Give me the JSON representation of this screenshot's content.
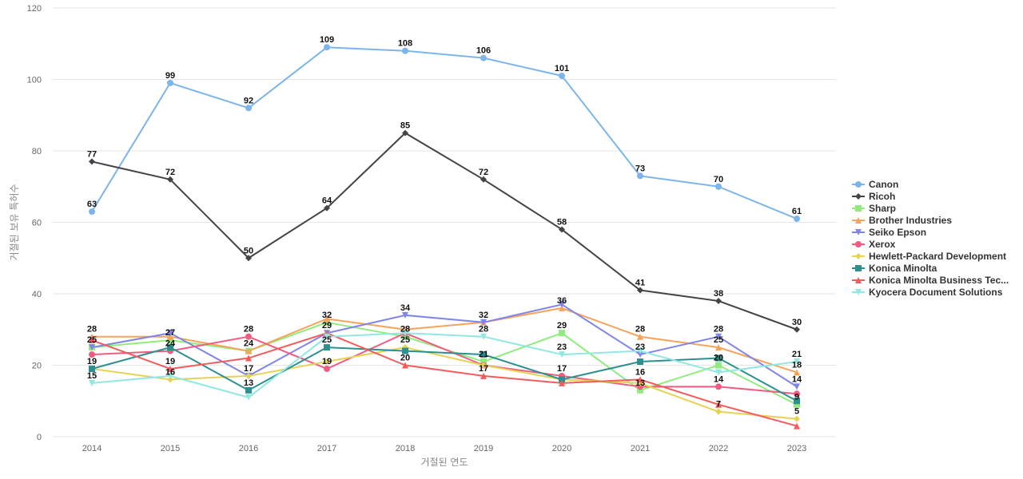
{
  "chart_data": {
    "type": "line",
    "xlabel": "거절된 연도",
    "ylabel": "거절된 보유 특허수",
    "ylim": [
      0,
      120
    ],
    "yticks": [
      0,
      20,
      40,
      60,
      80,
      100,
      120
    ],
    "grid": true,
    "legend_position": "right",
    "categories": [
      "2014",
      "2015",
      "2016",
      "2017",
      "2018",
      "2019",
      "2020",
      "2021",
      "2022",
      "2023"
    ],
    "series": [
      {
        "name": "Canon",
        "color": "#7cb5ec",
        "marker": "circle",
        "values": [
          63,
          99,
          92,
          109,
          108,
          106,
          101,
          73,
          70,
          61
        ]
      },
      {
        "name": "Ricoh",
        "color": "#434348",
        "marker": "diamond",
        "values": [
          77,
          72,
          50,
          64,
          85,
          72,
          58,
          41,
          38,
          30
        ]
      },
      {
        "name": "Sharp",
        "color": "#90ed7d",
        "marker": "square",
        "values": [
          25,
          27,
          24,
          32,
          28,
          21,
          29,
          13,
          20,
          9
        ]
      },
      {
        "name": "Brother Industries",
        "color": "#f7a35c",
        "marker": "triangle",
        "values": [
          28,
          28,
          24,
          33,
          30,
          32,
          36,
          28,
          25,
          18
        ]
      },
      {
        "name": "Seiko Epson",
        "color": "#8085e9",
        "marker": "triangle-down",
        "values": [
          25,
          29,
          17,
          29,
          34,
          32,
          37,
          23,
          28,
          14
        ]
      },
      {
        "name": "Xerox",
        "color": "#f15c80",
        "marker": "circle",
        "values": [
          23,
          24,
          28,
          19,
          29,
          20,
          17,
          14,
          14,
          12
        ]
      },
      {
        "name": "Hewlett-Packard Development",
        "color": "#e4d354",
        "marker": "diamond",
        "values": [
          19,
          16,
          17,
          21,
          25,
          20,
          16,
          15,
          7,
          5
        ]
      },
      {
        "name": "Konica Minolta",
        "color": "#2b908f",
        "marker": "square",
        "values": [
          19,
          25,
          13,
          25,
          24,
          23,
          16,
          21,
          22,
          10
        ]
      },
      {
        "name": "Konica Minolta Business Tec...",
        "color": "#f45b5b",
        "marker": "triangle",
        "values": [
          27,
          19,
          22,
          29,
          20,
          17,
          15,
          16,
          9,
          3
        ]
      },
      {
        "name": "Kyocera Document Solutions",
        "color": "#91e8e1",
        "marker": "triangle-down",
        "values": [
          15,
          17,
          11,
          28,
          29,
          28,
          23,
          24,
          18,
          21
        ]
      }
    ],
    "data_labels": [
      {
        "x": "2014",
        "text": "63",
        "value": 63
      },
      {
        "x": "2014",
        "text": "77",
        "value": 77
      },
      {
        "x": "2014",
        "text": "28",
        "value": 28
      },
      {
        "x": "2014",
        "text": "25",
        "value": 25
      },
      {
        "x": "2014",
        "text": "19",
        "value": 19
      },
      {
        "x": "2014",
        "text": "15",
        "value": 15
      },
      {
        "x": "2015",
        "text": "99",
        "value": 99
      },
      {
        "x": "2015",
        "text": "72",
        "value": 72
      },
      {
        "x": "2015",
        "text": "27",
        "value": 27
      },
      {
        "x": "2015",
        "text": "24",
        "value": 24
      },
      {
        "x": "2015",
        "text": "19",
        "value": 19
      },
      {
        "x": "2015",
        "text": "16",
        "value": 16
      },
      {
        "x": "2016",
        "text": "92",
        "value": 92
      },
      {
        "x": "2016",
        "text": "50",
        "value": 50
      },
      {
        "x": "2016",
        "text": "28",
        "value": 28
      },
      {
        "x": "2016",
        "text": "24",
        "value": 24
      },
      {
        "x": "2016",
        "text": "17",
        "value": 17
      },
      {
        "x": "2016",
        "text": "13",
        "value": 13
      },
      {
        "x": "2017",
        "text": "109",
        "value": 109
      },
      {
        "x": "2017",
        "text": "64",
        "value": 64
      },
      {
        "x": "2017",
        "text": "32",
        "value": 32
      },
      {
        "x": "2017",
        "text": "29",
        "value": 29
      },
      {
        "x": "2017",
        "text": "25",
        "value": 25
      },
      {
        "x": "2017",
        "text": "19",
        "value": 19
      },
      {
        "x": "2018",
        "text": "108",
        "value": 108
      },
      {
        "x": "2018",
        "text": "85",
        "value": 85
      },
      {
        "x": "2018",
        "text": "34",
        "value": 34
      },
      {
        "x": "2018",
        "text": "28",
        "value": 28
      },
      {
        "x": "2018",
        "text": "25",
        "value": 25
      },
      {
        "x": "2018",
        "text": "20",
        "value": 20
      },
      {
        "x": "2019",
        "text": "106",
        "value": 106
      },
      {
        "x": "2019",
        "text": "72",
        "value": 72
      },
      {
        "x": "2019",
        "text": "32",
        "value": 32
      },
      {
        "x": "2019",
        "text": "28",
        "value": 28
      },
      {
        "x": "2019",
        "text": "21",
        "value": 21
      },
      {
        "x": "2019",
        "text": "17",
        "value": 17
      },
      {
        "x": "2020",
        "text": "101",
        "value": 101
      },
      {
        "x": "2020",
        "text": "58",
        "value": 58
      },
      {
        "x": "2020",
        "text": "36",
        "value": 36
      },
      {
        "x": "2020",
        "text": "29",
        "value": 29
      },
      {
        "x": "2020",
        "text": "23",
        "value": 23
      },
      {
        "x": "2020",
        "text": "17",
        "value": 17
      },
      {
        "x": "2021",
        "text": "73",
        "value": 73
      },
      {
        "x": "2021",
        "text": "41",
        "value": 41
      },
      {
        "x": "2021",
        "text": "28",
        "value": 28
      },
      {
        "x": "2021",
        "text": "23",
        "value": 23
      },
      {
        "x": "2021",
        "text": "16",
        "value": 16
      },
      {
        "x": "2021",
        "text": "13",
        "value": 13
      },
      {
        "x": "2022",
        "text": "70",
        "value": 70
      },
      {
        "x": "2022",
        "text": "38",
        "value": 38
      },
      {
        "x": "2022",
        "text": "28",
        "value": 28
      },
      {
        "x": "2022",
        "text": "25",
        "value": 25
      },
      {
        "x": "2022",
        "text": "20",
        "value": 20
      },
      {
        "x": "2022",
        "text": "14",
        "value": 14
      },
      {
        "x": "2022",
        "text": "7",
        "value": 7
      },
      {
        "x": "2023",
        "text": "61",
        "value": 61
      },
      {
        "x": "2023",
        "text": "30",
        "value": 30
      },
      {
        "x": "2023",
        "text": "21",
        "value": 21
      },
      {
        "x": "2023",
        "text": "18",
        "value": 18
      },
      {
        "x": "2023",
        "text": "14",
        "value": 14
      },
      {
        "x": "2023",
        "text": "9",
        "value": 9
      },
      {
        "x": "2023",
        "text": "5",
        "value": 5
      }
    ]
  }
}
